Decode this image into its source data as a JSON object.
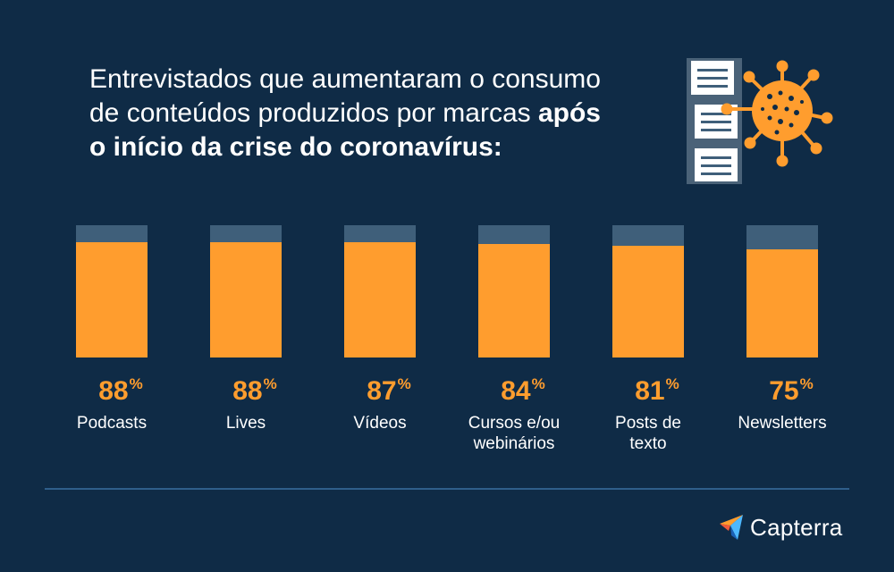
{
  "title": {
    "line1": "Entrevistados que aumentaram o consumo",
    "line2_regular": "de conteúdos produzidos por marcas ",
    "line2_bold": "após",
    "line3_bold": "o início da crise do coronavírus:"
  },
  "chart_data": {
    "type": "bar",
    "categories": [
      "Podcasts",
      "Lives",
      "Vídeos",
      "Cursos e/ou webinários",
      "Posts de texto",
      "Newsletters"
    ],
    "values": [
      88,
      88,
      87,
      84,
      81,
      75
    ],
    "value_suffix": "%",
    "ylim": [
      0,
      100
    ],
    "colors": {
      "fill": "#ff9d2e",
      "remainder": "#3f5f7a",
      "background": "#0f2b46"
    }
  },
  "labels": [
    {
      "pct": "88",
      "unit": "%",
      "lines": [
        "Podcasts"
      ]
    },
    {
      "pct": "88",
      "unit": "%",
      "lines": [
        "Lives"
      ]
    },
    {
      "pct": "87",
      "unit": "%",
      "lines": [
        "Vídeos"
      ]
    },
    {
      "pct": "84",
      "unit": "%",
      "lines": [
        "Cursos e/ou",
        "webinários"
      ]
    },
    {
      "pct": "81",
      "unit": "%",
      "lines": [
        "Posts de",
        "texto"
      ]
    },
    {
      "pct": "75",
      "unit": "%",
      "lines": [
        "Newsletters"
      ]
    }
  ],
  "logo": {
    "text": "Capterra"
  },
  "icons": [
    "documents-icon",
    "virus-icon",
    "capterra-logo-icon"
  ]
}
